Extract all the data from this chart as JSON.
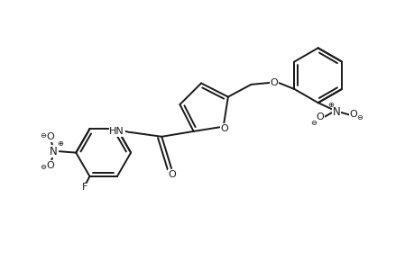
{
  "bg_color": "#ffffff",
  "line_color": "#1a1a1a",
  "line_width": 1.4,
  "figsize": [
    4.6,
    3.0
  ],
  "dpi": 100,
  "xlim": [
    0,
    9.2
  ],
  "ylim": [
    0,
    6.0
  ]
}
